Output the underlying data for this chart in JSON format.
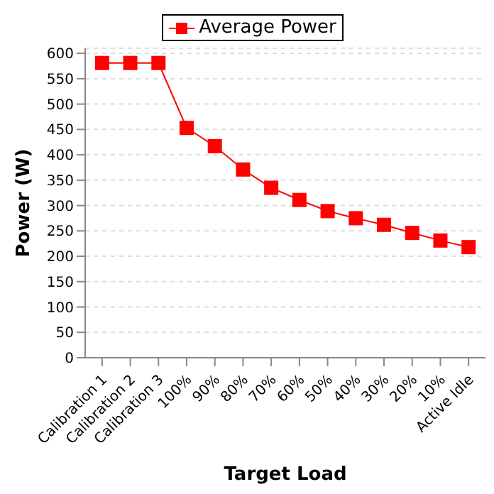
{
  "chart_data": {
    "type": "line",
    "xlabel": "Target Load",
    "ylabel": "Power (W)",
    "categories": [
      "Calibration 1",
      "Calibration 2",
      "Calibration 3",
      "100%",
      "90%",
      "80%",
      "70%",
      "60%",
      "50%",
      "40%",
      "30%",
      "20%",
      "10%",
      "Active Idle"
    ],
    "series": [
      {
        "name": "Average Power",
        "color": "#ff0000",
        "values": [
          581,
          581,
          581,
          453,
          417,
          371,
          335,
          311,
          289,
          275,
          262,
          246,
          231,
          218
        ]
      }
    ],
    "ylim": [
      0,
      610
    ],
    "yticks": [
      0,
      50,
      100,
      150,
      200,
      250,
      300,
      350,
      400,
      450,
      500,
      550,
      600
    ],
    "grid": "y",
    "legend": "top",
    "marker": "square"
  }
}
